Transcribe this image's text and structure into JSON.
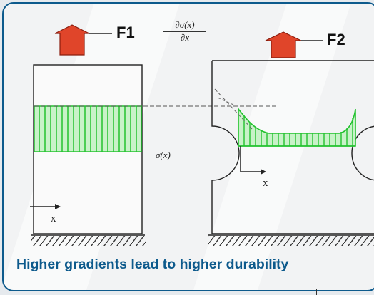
{
  "labels": {
    "force_left": "F1",
    "force_right": "F2",
    "gradient_numerator": "∂σ(x)",
    "gradient_denominator": "∂x",
    "stress": "σ(x)",
    "axis_left": "x",
    "axis_right": "x"
  },
  "caption": "Higher gradients lead to higher durability",
  "colors": {
    "accent": "#0d5a8c",
    "arrow": "#e0452a",
    "stress": "#22c22e"
  }
}
